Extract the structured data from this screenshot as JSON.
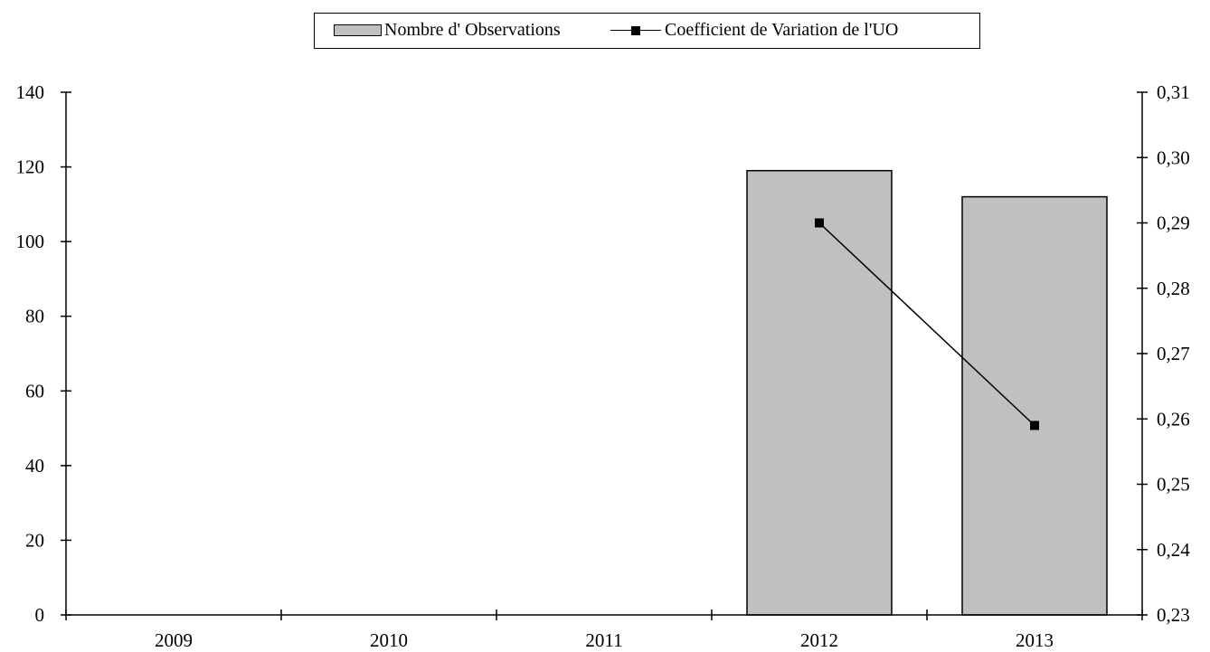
{
  "chart_data": {
    "type": "bar",
    "categories": [
      "2009",
      "2010",
      "2011",
      "2012",
      "2013"
    ],
    "series": [
      {
        "name": "Nombre d' Observations",
        "type": "bar",
        "axis": "left",
        "values": [
          null,
          null,
          null,
          119,
          112
        ],
        "color": "#c0c0c0"
      },
      {
        "name": "Coefficient de Variation de l'UO",
        "type": "line",
        "axis": "right",
        "values": [
          null,
          null,
          null,
          0.29,
          0.259
        ],
        "color": "#000000",
        "marker": "square"
      }
    ],
    "y_left": {
      "min": 0,
      "max": 140,
      "ticks": [
        "0",
        "20",
        "40",
        "60",
        "80",
        "100",
        "120",
        "140"
      ]
    },
    "y_right": {
      "min": 0.23,
      "max": 0.31,
      "ticks": [
        "0,23",
        "0,24",
        "0,25",
        "0,26",
        "0,27",
        "0,28",
        "0,29",
        "0,30",
        "0,31"
      ]
    },
    "grid": false,
    "legend_position": "top-center"
  }
}
